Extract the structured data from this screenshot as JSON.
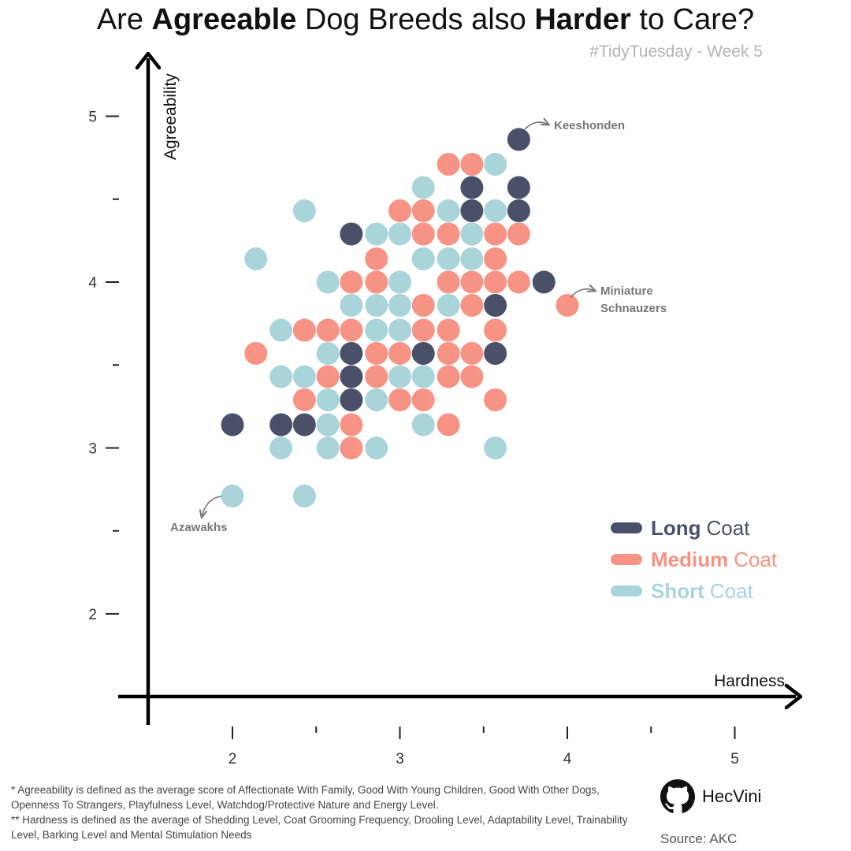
{
  "title": {
    "prefix": "Are ",
    "bold1": "Agreeable",
    "middle": " Dog Breeds also ",
    "bold2": "Harder",
    "suffix": " to Care?"
  },
  "subtitle": "#TidyTuesday - Week 5",
  "colors": {
    "long": "#4a5068",
    "medium": "#f79384",
    "short": "#a8d4da",
    "axis": "#000000",
    "annotation": "#777777"
  },
  "legend": [
    {
      "key": "long",
      "bold": "Long",
      "rest": "Coat",
      "color": "#4a5068"
    },
    {
      "key": "medium",
      "bold": "Medium",
      "rest": "Coat",
      "color": "#f79384"
    },
    {
      "key": "short",
      "bold": "Short",
      "rest": "Coat",
      "color": "#a8d4da"
    }
  ],
  "annotations": [
    {
      "text": "Keeshonden",
      "x": 3.71,
      "y": 4.86
    },
    {
      "text": "Miniature Schnauzers",
      "x": 4.0,
      "y": 3.86
    },
    {
      "text": "Azawakhs",
      "x": 2.0,
      "y": 2.71
    }
  ],
  "footnote": [
    "* Agreeability is defined as the average score of Affectionate With Family, Good With Young Children, Good With Other Dogs, Openness To Strangers, Playfulness Level, Watchdog/Protective Nature and Energy Level.",
    "** Hardness is defined as the average of Shedding Level, Coat Grooming Frequency, Drooling Level, Adaptability Level, Trainability Level, Barking Level and Mental Stimulation Needs"
  ],
  "author": "HecVini",
  "source": "Source: AKC",
  "chart_data": {
    "type": "scatter",
    "xlabel": "Hardness",
    "ylabel": "Agreeability",
    "xlim": [
      1.5,
      5.2
    ],
    "ylim": [
      1.5,
      5.35
    ],
    "xticks": [
      2,
      2.5,
      3,
      3.5,
      4,
      4.5,
      5
    ],
    "xtick_labels": [
      "2",
      "",
      "3",
      "",
      "4",
      "",
      "5"
    ],
    "yticks": [
      2,
      2.5,
      3,
      3.5,
      4,
      4.5,
      5
    ],
    "ytick_labels": [
      "2",
      "",
      "3",
      "",
      "4",
      "",
      "5"
    ],
    "grid": false,
    "legend_position": "bottom-right",
    "series": [
      {
        "name": "Long Coat",
        "key": "long",
        "points": [
          [
            3.71,
            4.86
          ],
          [
            3.43,
            4.57
          ],
          [
            3.71,
            4.57
          ],
          [
            3.43,
            4.43
          ],
          [
            3.71,
            4.43
          ],
          [
            2.71,
            4.29
          ],
          [
            3.86,
            4.0
          ],
          [
            3.57,
            3.86
          ],
          [
            2.71,
            3.57
          ],
          [
            3.14,
            3.57
          ],
          [
            3.57,
            3.57
          ],
          [
            2.71,
            3.43
          ],
          [
            2.71,
            3.29
          ],
          [
            2.0,
            3.14
          ],
          [
            2.29,
            3.14
          ],
          [
            2.43,
            3.14
          ]
        ]
      },
      {
        "name": "Medium Coat",
        "key": "medium",
        "points": [
          [
            3.29,
            4.71
          ],
          [
            3.43,
            4.71
          ],
          [
            3.0,
            4.43
          ],
          [
            3.14,
            4.43
          ],
          [
            3.14,
            4.29
          ],
          [
            3.29,
            4.29
          ],
          [
            3.57,
            4.29
          ],
          [
            3.71,
            4.29
          ],
          [
            2.86,
            4.14
          ],
          [
            3.57,
            4.14
          ],
          [
            2.71,
            4.0
          ],
          [
            2.86,
            4.0
          ],
          [
            3.29,
            4.0
          ],
          [
            3.43,
            4.0
          ],
          [
            3.57,
            4.0
          ],
          [
            3.71,
            4.0
          ],
          [
            4.0,
            3.86
          ],
          [
            3.14,
            3.86
          ],
          [
            3.43,
            3.86
          ],
          [
            2.43,
            3.71
          ],
          [
            2.57,
            3.71
          ],
          [
            2.71,
            3.71
          ],
          [
            3.14,
            3.71
          ],
          [
            3.29,
            3.71
          ],
          [
            3.57,
            3.71
          ],
          [
            2.14,
            3.57
          ],
          [
            2.86,
            3.57
          ],
          [
            3.0,
            3.57
          ],
          [
            3.29,
            3.57
          ],
          [
            3.43,
            3.57
          ],
          [
            2.57,
            3.43
          ],
          [
            2.86,
            3.43
          ],
          [
            3.29,
            3.43
          ],
          [
            3.43,
            3.43
          ],
          [
            2.43,
            3.29
          ],
          [
            3.0,
            3.29
          ],
          [
            3.14,
            3.29
          ],
          [
            3.57,
            3.29
          ],
          [
            2.71,
            3.14
          ],
          [
            3.29,
            3.14
          ],
          [
            2.71,
            3.0
          ]
        ]
      },
      {
        "name": "Short Coat",
        "key": "short",
        "points": [
          [
            3.57,
            4.71
          ],
          [
            3.14,
            4.57
          ],
          [
            2.43,
            4.43
          ],
          [
            3.29,
            4.43
          ],
          [
            3.57,
            4.43
          ],
          [
            2.86,
            4.29
          ],
          [
            3.0,
            4.29
          ],
          [
            3.43,
            4.29
          ],
          [
            2.14,
            4.14
          ],
          [
            3.14,
            4.14
          ],
          [
            3.29,
            4.14
          ],
          [
            3.43,
            4.14
          ],
          [
            2.57,
            4.0
          ],
          [
            3.0,
            4.0
          ],
          [
            2.71,
            3.86
          ],
          [
            2.86,
            3.86
          ],
          [
            3.0,
            3.86
          ],
          [
            3.29,
            3.86
          ],
          [
            2.29,
            3.71
          ],
          [
            2.86,
            3.71
          ],
          [
            3.0,
            3.71
          ],
          [
            2.57,
            3.57
          ],
          [
            2.29,
            3.43
          ],
          [
            2.43,
            3.43
          ],
          [
            3.0,
            3.43
          ],
          [
            3.14,
            3.43
          ],
          [
            2.57,
            3.29
          ],
          [
            2.86,
            3.29
          ],
          [
            2.57,
            3.14
          ],
          [
            3.14,
            3.14
          ],
          [
            2.29,
            3.0
          ],
          [
            2.57,
            3.0
          ],
          [
            2.86,
            3.0
          ],
          [
            3.57,
            3.0
          ],
          [
            2.0,
            2.71
          ],
          [
            2.43,
            2.71
          ]
        ]
      }
    ]
  }
}
